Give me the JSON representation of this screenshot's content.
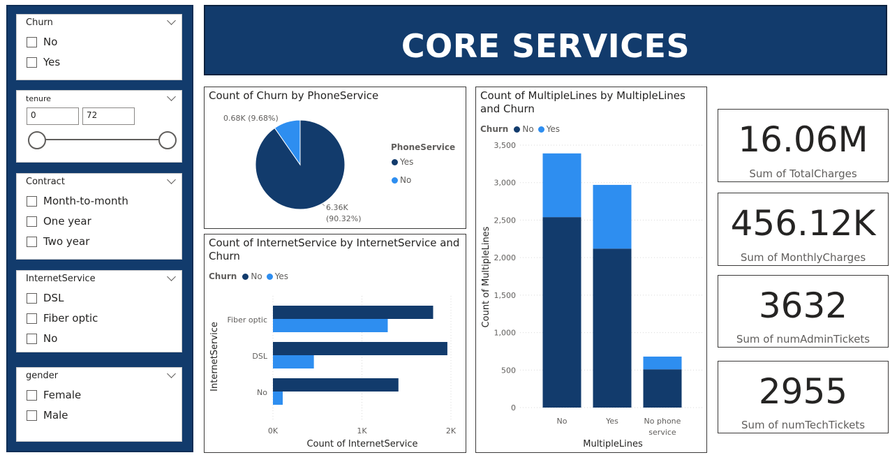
{
  "banner": {
    "title": "CORE SERVICES"
  },
  "slicers": {
    "churn": {
      "title": "Churn",
      "options": [
        "No",
        "Yes"
      ]
    },
    "tenure": {
      "title": "tenure",
      "min_value": "0",
      "max_value": "72"
    },
    "contract": {
      "title": "Contract",
      "options": [
        "Month-to-month",
        "One year",
        "Two year"
      ]
    },
    "internet": {
      "title": "InternetService",
      "options": [
        "DSL",
        "Fiber optic",
        "No"
      ]
    },
    "gender": {
      "title": "gender",
      "options": [
        "Female",
        "Male"
      ]
    }
  },
  "colors": {
    "no": "#123b6c",
    "yes": "#2e8ef0",
    "banner": "#123b6c"
  },
  "cards": [
    {
      "value": "16.06M",
      "label": "Sum of TotalCharges"
    },
    {
      "value": "456.12K",
      "label": "Sum of MonthlyCharges"
    },
    {
      "value": "3632",
      "label": "Sum of numAdminTickets"
    },
    {
      "value": "2955",
      "label": "Sum of numTechTickets"
    }
  ],
  "pie": {
    "title": "Count of Churn by PhoneService",
    "legend_title": "PhoneService",
    "legend": [
      "Yes",
      "No"
    ],
    "label_no": "0.68K (9.68%)",
    "label_yes_1": "6.36K",
    "label_yes_2": "(90.32%)"
  },
  "bar": {
    "title_1": "Count of InternetService by InternetService and",
    "title_2": "Churn",
    "legend_title": "Churn",
    "legend": [
      "No",
      "Yes"
    ],
    "ylabel": "InternetService",
    "xlabel": "Count of InternetService",
    "xticks": [
      "0K",
      "1K",
      "2K"
    ]
  },
  "col": {
    "title_1": "Count of MultipleLines by MultipleLines",
    "title_2": "and Churn",
    "legend_title": "Churn",
    "legend": [
      "No",
      "Yes"
    ],
    "ylabel": "Count of MultipleLines",
    "xlabel": "MultipleLines"
  },
  "chart_data": [
    {
      "type": "pie",
      "title": "Count of Churn by PhoneService",
      "legend_title": "PhoneService",
      "categories": [
        "Yes",
        "No"
      ],
      "values": [
        6360,
        680
      ],
      "percent": [
        90.32,
        9.68
      ]
    },
    {
      "type": "bar",
      "orientation": "horizontal",
      "title": "Count of InternetService by InternetService and Churn",
      "categories": [
        "Fiber optic",
        "DSL",
        "No"
      ],
      "series": [
        {
          "name": "No",
          "values": [
            1800,
            1960,
            1410
          ]
        },
        {
          "name": "Yes",
          "values": [
            1290,
            460,
            110
          ]
        }
      ],
      "xlim": [
        0,
        2000
      ],
      "xticks": [
        0,
        1000,
        2000
      ],
      "xlabel": "Count of InternetService",
      "ylabel": "InternetService",
      "legend_title": "Churn"
    },
    {
      "type": "bar",
      "stacked": true,
      "title": "Count of MultipleLines by MultipleLines and Churn",
      "categories": [
        "No",
        "Yes",
        "No phone service"
      ],
      "series": [
        {
          "name": "No",
          "values": [
            2540,
            2120,
            510
          ]
        },
        {
          "name": "Yes",
          "values": [
            850,
            850,
            170
          ]
        }
      ],
      "ylim": [
        0,
        3500
      ],
      "yticks": [
        "0",
        "500",
        "1,000",
        "1,500",
        "2,000",
        "2,500",
        "3,000",
        "3,500"
      ],
      "xlabel": "MultipleLines",
      "ylabel": "Count of MultipleLines",
      "legend_title": "Churn"
    }
  ]
}
